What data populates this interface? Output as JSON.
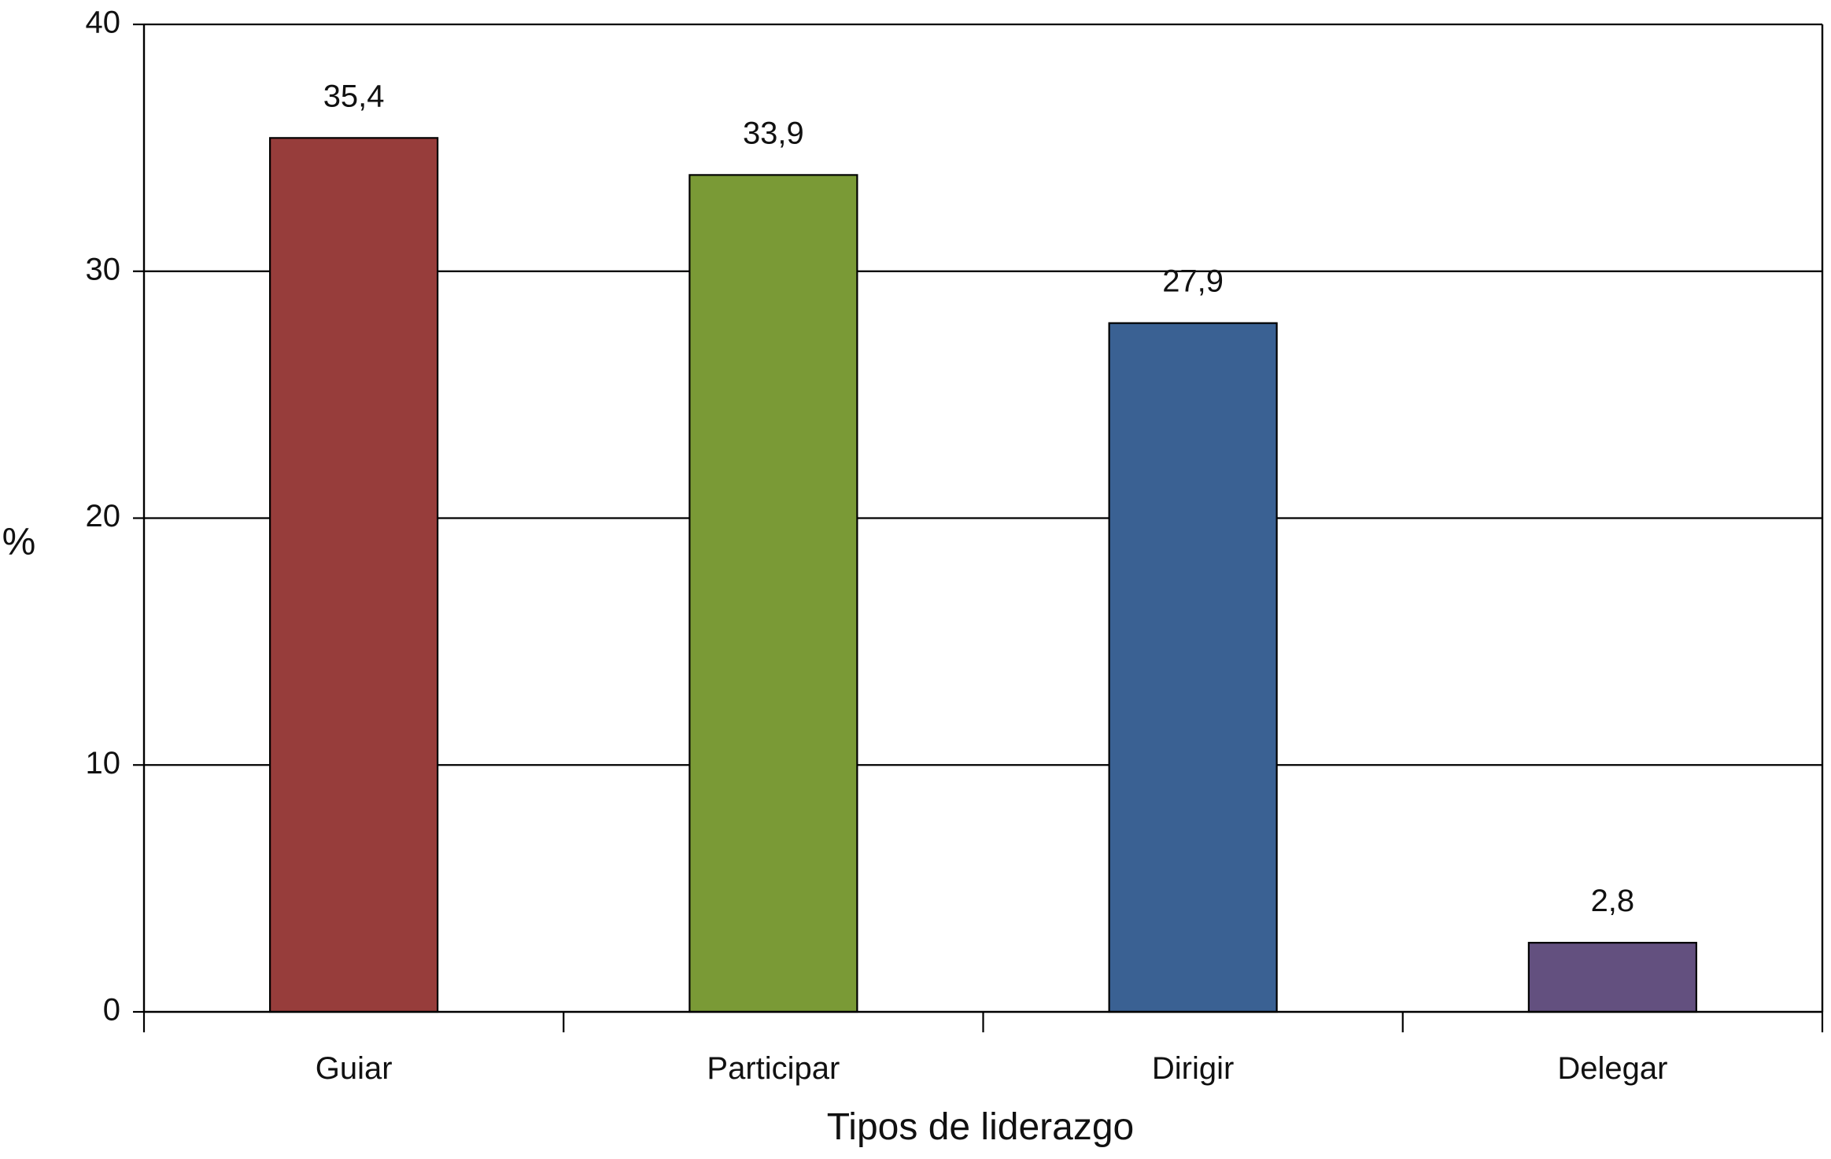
{
  "chart_data": {
    "type": "bar",
    "categories": [
      "Guiar",
      "Participar",
      "Dirigir",
      "Delegar"
    ],
    "values": [
      35.4,
      33.9,
      27.9,
      2.8
    ],
    "value_labels": [
      "35,4",
      "33,9",
      "27,9",
      "2,8"
    ],
    "colors": [
      "#973d3b",
      "#7a9a36",
      "#3a6193",
      "#63507f"
    ],
    "title": "",
    "xlabel": "Tipos de liderazgo",
    "ylabel": "%",
    "ylim": [
      0,
      40
    ],
    "yticks": [
      0,
      10,
      20,
      30,
      40
    ],
    "ytick_labels": [
      "0",
      "10",
      "20",
      "30",
      "40"
    ],
    "grid": "horizontal"
  }
}
